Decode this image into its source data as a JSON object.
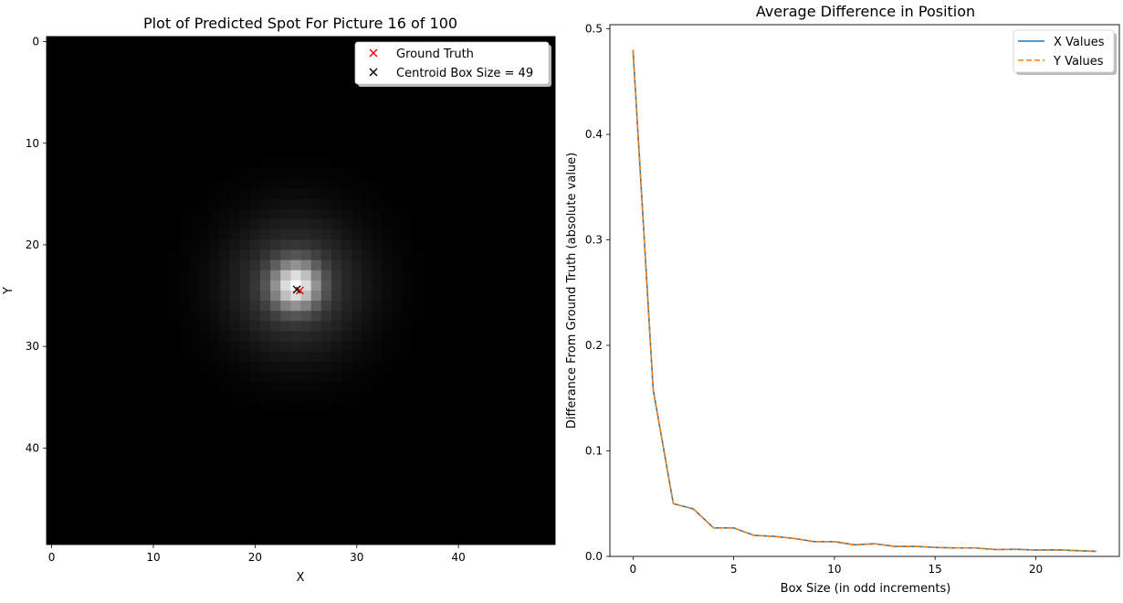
{
  "chart_data": [
    {
      "type": "heatmap",
      "title": "Plot of Predicted Spot For Picture 16 of 100",
      "xlabel": "X",
      "ylabel": "Y",
      "x_ticks": [
        "0",
        "10",
        "20",
        "30",
        "40"
      ],
      "y_ticks": [
        "0",
        "10",
        "20",
        "30",
        "40"
      ],
      "xlim": [
        -0.5,
        49.5
      ],
      "ylim": [
        49.5,
        -0.5
      ],
      "image_size": [
        50,
        50
      ],
      "colormap": "gray",
      "spot": {
        "cx": 24,
        "cy": 24,
        "sigma": 1.5,
        "sigma_halo": 4.2
      },
      "markers": [
        {
          "label": "Ground Truth",
          "x": 24.4,
          "y": 24.5,
          "color": "#ff0000",
          "marker": "x"
        },
        {
          "label": "Centroid Box Size = 49",
          "x": 24.1,
          "y": 24.4,
          "color": "#000000",
          "marker": "x"
        }
      ],
      "legend_position": "upper right"
    },
    {
      "type": "line",
      "title": "Average Difference in Position",
      "xlabel": "Box Size (in odd increments)",
      "ylabel": "Differance From Ground Truth (absolute value)",
      "x_ticks": [
        "0",
        "5",
        "10",
        "15",
        "20"
      ],
      "y_ticks": [
        "0.0",
        "0.1",
        "0.2",
        "0.3",
        "0.4",
        "0.5"
      ],
      "xlim": [
        -1.15,
        24.15
      ],
      "ylim": [
        0,
        0.504
      ],
      "x": [
        0,
        1,
        2,
        3,
        4,
        5,
        6,
        7,
        8,
        9,
        10,
        11,
        12,
        13,
        14,
        15,
        16,
        17,
        18,
        19,
        20,
        21,
        22,
        23
      ],
      "series": [
        {
          "name": "X Values",
          "color": "#1f77b4",
          "style": "solid",
          "values": [
            0.48,
            0.158,
            0.05,
            0.045,
            0.027,
            0.027,
            0.02,
            0.019,
            0.017,
            0.014,
            0.014,
            0.011,
            0.012,
            0.0095,
            0.0095,
            0.0085,
            0.008,
            0.008,
            0.0065,
            0.0068,
            0.006,
            0.0062,
            0.0055,
            0.0048
          ]
        },
        {
          "name": "Y Values",
          "color": "#ff7f0e",
          "style": "dashed",
          "values": [
            0.48,
            0.158,
            0.05,
            0.045,
            0.027,
            0.027,
            0.02,
            0.019,
            0.017,
            0.014,
            0.014,
            0.011,
            0.012,
            0.0095,
            0.0095,
            0.0085,
            0.008,
            0.008,
            0.0065,
            0.0068,
            0.006,
            0.0062,
            0.0055,
            0.0048
          ]
        }
      ],
      "legend_position": "upper right"
    }
  ]
}
